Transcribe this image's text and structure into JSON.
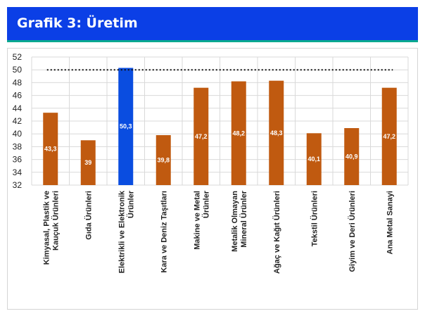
{
  "header": {
    "title": "Grafik 3: Üretim"
  },
  "colors": {
    "header_bg": "#0b3fe6",
    "bar_default": "#c05a10",
    "bar_highlight": "#0a4de0",
    "reference_line": "#111111"
  },
  "chart_data": {
    "type": "bar",
    "title": "",
    "xlabel": "",
    "ylabel": "",
    "ylim": [
      32,
      52
    ],
    "yticks": [
      32,
      34,
      36,
      38,
      40,
      42,
      44,
      46,
      48,
      50,
      52
    ],
    "grid": true,
    "reference_line": 50,
    "highlight_index": 2,
    "categories": [
      [
        "Kimyasal, Plastik ve",
        "Kauçuk Ürünleri"
      ],
      [
        "Gıda Ürünleri"
      ],
      [
        "Elektrikli ve Elektronik",
        "Ürünler"
      ],
      [
        "Kara ve Deniz Taşıtları"
      ],
      [
        "Makine ve Metal",
        "Ürünler"
      ],
      [
        "Metalik Olmayan",
        "Mineral Ürünler"
      ],
      [
        "Ağaç ve Kağıt Ürünleri"
      ],
      [
        "Tekstil Ürünleri"
      ],
      [
        "Giyim ve Deri Ürünleri"
      ],
      [
        "Ana Metal Sanayi"
      ]
    ],
    "values": [
      43.3,
      39,
      50.3,
      39.8,
      47.2,
      48.2,
      48.3,
      40.1,
      40.9,
      47.2
    ],
    "data_labels": [
      "43,3",
      "39",
      "50,3",
      "39,8",
      "47,2",
      "48,2",
      "48,3",
      "40,1",
      "40,9",
      "47,2"
    ]
  }
}
